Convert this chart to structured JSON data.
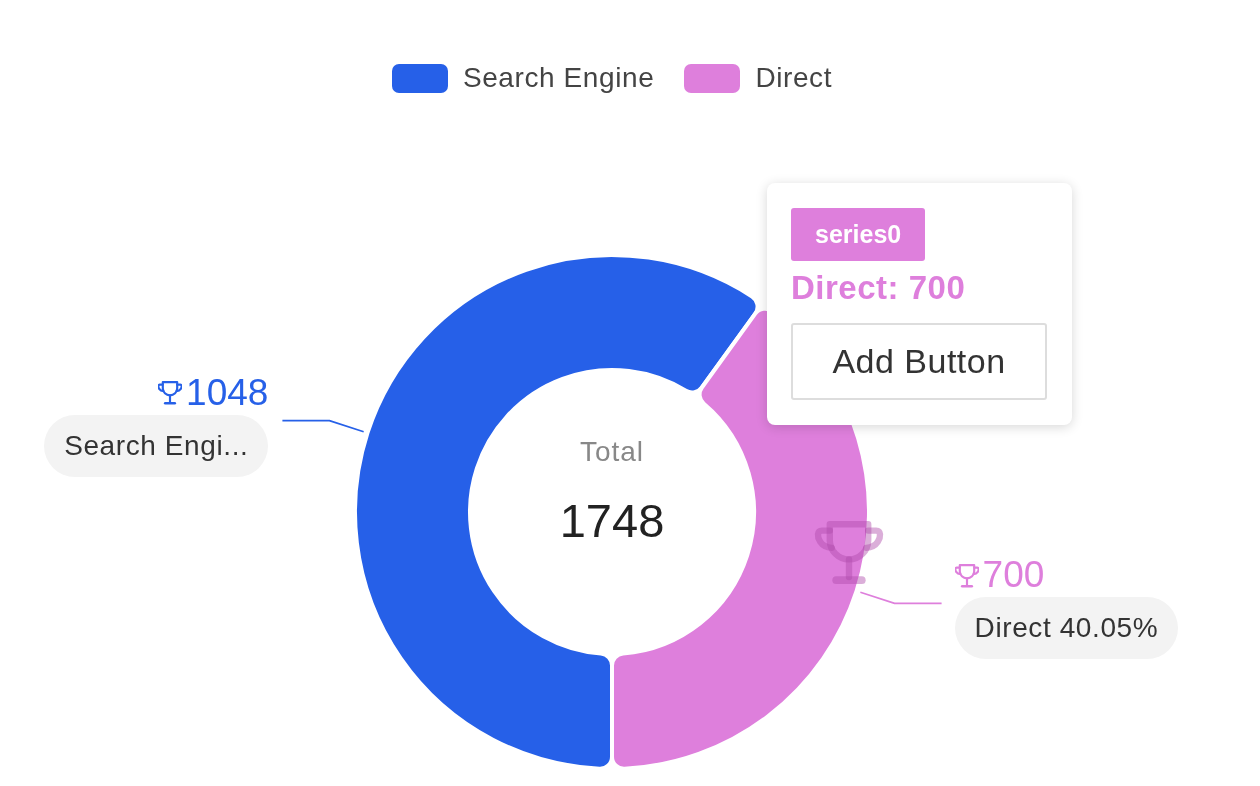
{
  "chart_data": {
    "type": "donut",
    "categories": [
      "Search Engine",
      "Direct"
    ],
    "values": [
      1048,
      700
    ],
    "colors": [
      "#2660e8",
      "#de7fdc"
    ],
    "legend": "top",
    "data_labels": true,
    "annotations": [
      {
        "text": "Search Engi...",
        "x": "Search Engine"
      },
      {
        "text": "Direct 40.05%",
        "x": "Direct"
      },
      "Total",
      "1748",
      "series0",
      "Direct: 700",
      "Add Button"
    ]
  }
}
